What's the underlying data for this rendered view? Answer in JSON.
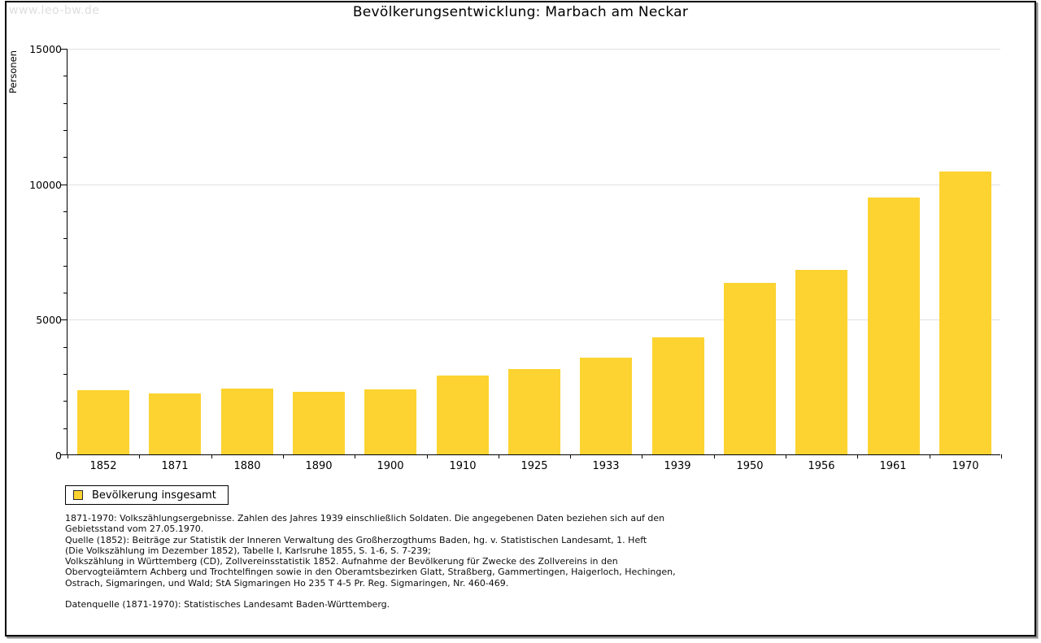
{
  "header": {
    "watermark": "www.leo-bw.de",
    "title": "Bevölkerungsentwicklung: Marbach am Neckar"
  },
  "chart_data": {
    "type": "bar",
    "title": "Bevölkerungsentwicklung: Marbach am Neckar",
    "xlabel": "",
    "ylabel": "Personen",
    "categories": [
      "1852",
      "1871",
      "1880",
      "1890",
      "1900",
      "1910",
      "1925",
      "1933",
      "1939",
      "1950",
      "1956",
      "1961",
      "1970"
    ],
    "series": [
      {
        "name": "Bevölkerung insgesamt",
        "values": [
          2370,
          2260,
          2440,
          2300,
          2410,
          2920,
          3150,
          3570,
          4320,
          6330,
          6820,
          9470,
          10440
        ]
      }
    ],
    "ylim": [
      0,
      15000
    ],
    "y_major_ticks": [
      0,
      5000,
      10000,
      15000
    ],
    "y_minor_step": 1000,
    "grid": "horizontal-major-only",
    "legend_position": "bottom-left",
    "bar_color": "#FCD330"
  },
  "legend": {
    "label": "Bevölkerung insgesamt",
    "swatch_color": "#FCD330"
  },
  "colors": {
    "bar": "#FCD330",
    "gridline": "#e0e0e0",
    "axis": "#000000",
    "watermark": "#dedede"
  },
  "notes": {
    "lines": [
      "1871-1970: Volkszählungsergebnisse. Zahlen des Jahres 1939 einschließlich Soldaten. Die angegebenen Daten beziehen sich auf den",
      "Gebietsstand vom 27.05.1970.",
      "Quelle (1852): Beiträge zur Statistik der Inneren Verwaltung des Großherzogthums Baden, hg. v. Statistischen Landesamt, 1. Heft",
      "(Die Volkszählung im Dezember 1852), Tabelle I, Karlsruhe 1855, S. 1-6, S. 7-239;",
      "Volkszählung in Württemberg (CD), Zollvereinsstatistik 1852. Aufnahme der Bevölkerung für Zwecke des Zollvereins in den",
      "Obervogteiämtern Achberg und Trochtelfingen sowie in den Oberamtsbezirken Glatt, Straßberg, Gammertingen, Haigerloch, Hechingen,",
      "Ostrach, Sigmaringen, und Wald; StA Sigmaringen Ho 235 T 4-5 Pr. Reg. Sigmaringen, Nr. 460-469."
    ]
  },
  "datasource": "Datenquelle (1871-1970): Statistisches Landesamt Baden-Württemberg."
}
